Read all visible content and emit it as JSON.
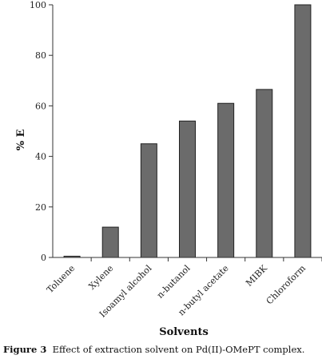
{
  "chart_data": {
    "type": "bar",
    "categories": [
      "Toluene",
      "Xylene",
      "Isoamyl alcohol",
      "n-butanol",
      "n-butyl acetate",
      "MIBK",
      "Chloroform"
    ],
    "values": [
      0.5,
      12,
      45,
      54,
      61,
      66.5,
      100
    ],
    "xlabel": "Solvents",
    "ylabel": "% E",
    "ylim": [
      0,
      100
    ],
    "yticks": [
      0,
      20,
      40,
      60,
      80,
      100
    ],
    "bar_color": "#6b6b6b",
    "grid": false,
    "legend": "none"
  },
  "caption": {
    "label": "Figure 3",
    "text": "Effect of extraction solvent on Pd(II)-OMePT complex."
  }
}
